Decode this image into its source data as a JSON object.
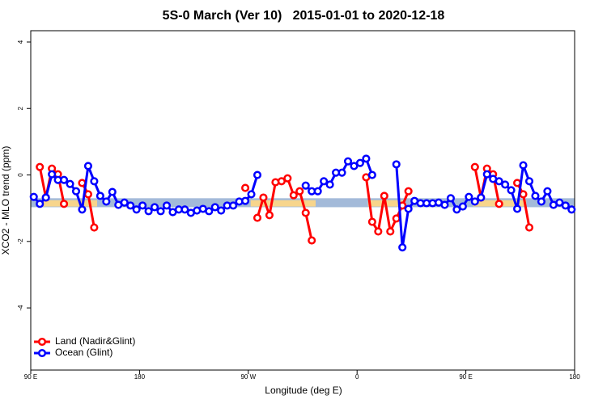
{
  "chart_data": {
    "type": "line",
    "title": "5S-0 March (Ver 10)   2015-01-01 to 2020-12-18",
    "xlabel": "Longitude (deg E)",
    "ylabel": "XCO2 - MLO trend (ppm)",
    "xlim": [
      90,
      540
    ],
    "ylim": [
      -5.87,
      4.34
    ],
    "xticks": [
      {
        "value": 90,
        "label": "90 E"
      },
      {
        "value": 180,
        "label": "180"
      },
      {
        "value": 270,
        "label": "90 W"
      },
      {
        "value": 360,
        "label": "0"
      },
      {
        "value": 450,
        "label": "90 E"
      },
      {
        "value": 540,
        "label": "180"
      }
    ],
    "yticks": [
      -4,
      -2,
      0,
      2,
      4
    ],
    "legend": "bottom-left",
    "bands": [
      {
        "color": "#a3bad9",
        "xmin": 90,
        "xmax": 540,
        "ymin": -0.97,
        "ymax": -0.7
      },
      {
        "color": "#f7d58c",
        "xmin": 94.7,
        "xmax": 144.9,
        "ymin": -0.95,
        "ymax": -0.76
      },
      {
        "color": "#f7d58c",
        "xmin": 272,
        "xmax": 325.7,
        "ymin": -0.95,
        "ymax": -0.76
      },
      {
        "color": "#f7d58c",
        "xmin": 369,
        "xmax": 399,
        "ymin": -0.95,
        "ymax": -0.76
      },
      {
        "color": "#f7d58c",
        "xmin": 456,
        "xmax": 500,
        "ymin": -0.95,
        "ymax": -0.76
      }
    ],
    "series": [
      {
        "name": "Land (Nadir&Glint)",
        "color": "#ff0000",
        "x": [
          97.5,
          102.5,
          107.5,
          112.5,
          117.5,
          122.5,
          132.5,
          137.5,
          142.5,
          147.5,
          267.5,
          272.5,
          277.5,
          282.5,
          287.5,
          292.5,
          297.5,
          302.5,
          307.5,
          312.5,
          317.5,
          322.5,
          327.5,
          367.5,
          372.5,
          377.5,
          382.5,
          387.5,
          392.5,
          397.5,
          402.5,
          407.5,
          457.5,
          462.5,
          467.5,
          472.5,
          477.5,
          482.5,
          492.5,
          497.5,
          502.5
        ],
        "values": [
          0.24,
          -0.68,
          0.19,
          0.02,
          -0.87,
          null,
          -0.24,
          -0.58,
          -1.58,
          null,
          -0.39,
          null,
          -1.29,
          -0.68,
          -1.21,
          -0.22,
          -0.19,
          -0.1,
          -0.61,
          -0.49,
          -1.14,
          -1.97,
          null,
          -0.07,
          -1.41,
          -1.7,
          -0.63,
          -1.7,
          -1.31,
          -0.92,
          -0.49,
          null,
          0.24,
          -0.68,
          0.19,
          0.02,
          -0.87,
          null,
          -0.24,
          -0.58,
          -1.58
        ]
      },
      {
        "name": "Ocean (Glint)",
        "color": "#0000ff",
        "x": [
          92.5,
          97.5,
          102.5,
          107.5,
          112.5,
          117.5,
          122.5,
          127.5,
          132.5,
          137.5,
          142.5,
          147.5,
          152.5,
          157.5,
          162.5,
          167.5,
          172.5,
          177.5,
          182.5,
          187.5,
          192.5,
          197.5,
          202.5,
          207.5,
          212.5,
          217.5,
          222.5,
          227.5,
          232.5,
          237.5,
          242.5,
          247.5,
          252.5,
          257.5,
          262.5,
          267.5,
          272.5,
          277.5,
          282.5,
          317.5,
          322.5,
          327.5,
          332.5,
          337.5,
          342.5,
          347.5,
          352.5,
          357.5,
          362.5,
          367.5,
          372.5,
          377.5,
          392.5,
          397.5,
          402.5,
          407.5,
          412.5,
          417.5,
          422.5,
          427.5,
          432.5,
          437.5,
          442.5,
          447.5,
          452.5,
          457.5,
          462.5,
          467.5,
          472.5,
          477.5,
          482.5,
          487.5,
          492.5,
          497.5,
          502.5,
          507.5,
          512.5,
          517.5,
          522.5,
          527.5,
          532.5,
          537.5
        ],
        "values": [
          -0.66,
          -0.87,
          -0.68,
          0.02,
          -0.15,
          -0.15,
          -0.27,
          -0.49,
          -1.04,
          0.27,
          -0.19,
          -0.63,
          -0.8,
          -0.51,
          -0.9,
          -0.83,
          -0.92,
          -1.04,
          -0.92,
          -1.09,
          -0.97,
          -1.09,
          -0.92,
          -1.12,
          -1.04,
          -1.04,
          -1.14,
          -1.07,
          -1.02,
          -1.09,
          -0.97,
          -1.07,
          -0.92,
          -0.92,
          -0.8,
          -0.78,
          -0.58,
          0.0,
          null,
          -0.32,
          -0.49,
          -0.49,
          -0.19,
          -0.29,
          0.07,
          0.07,
          0.41,
          0.27,
          0.36,
          0.49,
          0.0,
          null,
          0.32,
          -2.18,
          -1.02,
          -0.78,
          -0.85,
          -0.85,
          -0.85,
          -0.83,
          -0.9,
          -0.7,
          -1.04,
          -0.95,
          -0.66,
          -0.8,
          -0.68,
          0.02,
          -0.12,
          -0.19,
          -0.29,
          -0.46,
          -1.02,
          0.29,
          -0.19,
          -0.63,
          -0.8,
          -0.49,
          -0.9,
          -0.83,
          -0.92,
          -1.04
        ]
      }
    ]
  }
}
